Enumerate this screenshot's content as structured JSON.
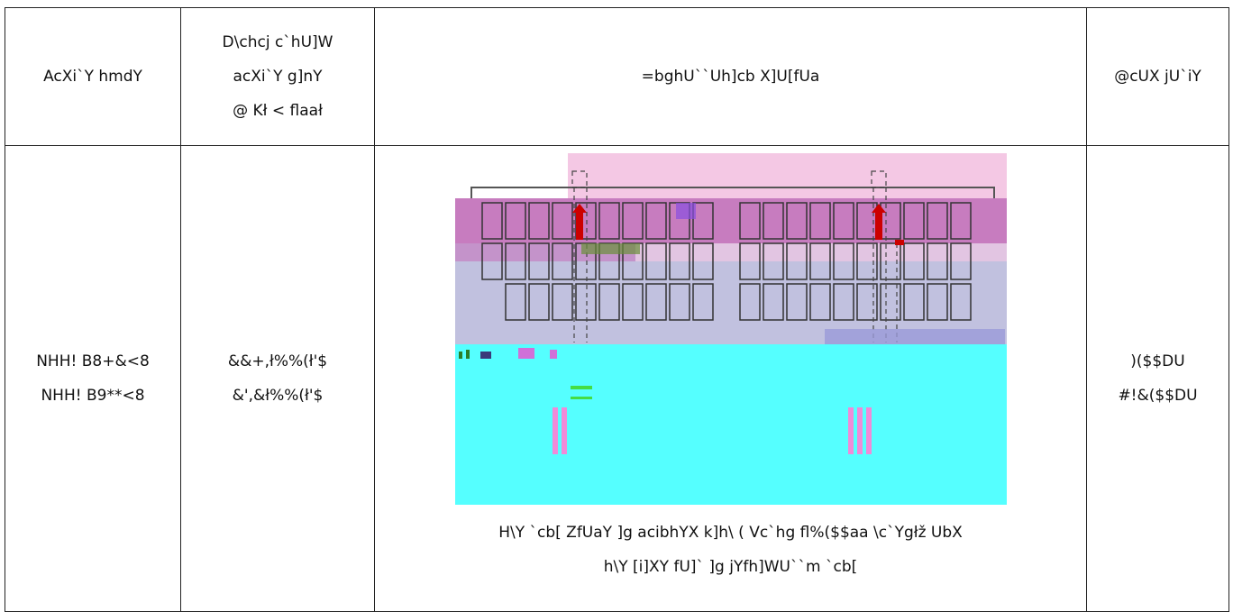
{
  "table": {
    "headers": {
      "col1": "AcXi`Y hmdY",
      "col2": [
        "D\\chcj c`hU]W",
        "acXi`Y g]nY",
        "@ Kł < flaał"
      ],
      "col3": "=bghU``Uh]cb X]U[fUa",
      "col4": "@cUX jU`iY"
    },
    "row": {
      "col1": [
        "NHH! B8+&<8",
        "NHH! B9**<8"
      ],
      "col2": [
        "&&+,ł%%(ł'$",
        "&',&ł%%(ł'$"
      ],
      "col3_caption": [
        "H\\Y `cb[ ZfUaY ]g acibhYX k]h\\ ( Vc`hg fl%($$aa \\c`Ygłž UbX",
        "h\\Y [i]XY fU]` ]g jYfh]WU``m `cb["
      ],
      "col4": [
        ")($$DU",
        "#!&($$DU"
      ]
    }
  },
  "colors": {
    "pink": "#f4c8e4",
    "magenta": "#c77cbf",
    "lavender": "#c1c1df",
    "cyan": "#55ffff",
    "arrow": "#cc0000"
  }
}
